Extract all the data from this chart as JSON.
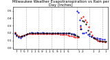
{
  "title": "Milwaukee Weather Evapotranspiration vs Rain per Day (Inches)",
  "background_color": "#ffffff",
  "xlim": [
    0,
    52
  ],
  "ylim": [
    -0.02,
    0.55
  ],
  "yticks": [
    0.0,
    0.1,
    0.2,
    0.3,
    0.4,
    0.5
  ],
  "grid_color": "#aaaaaa",
  "blue_x": [
    1,
    2,
    3,
    4,
    5,
    6,
    7,
    8,
    9,
    10,
    11,
    12,
    13,
    14,
    15,
    16,
    17,
    18,
    19,
    20,
    21,
    22,
    23,
    24,
    25,
    26,
    27,
    28,
    29,
    30,
    31,
    32,
    33,
    34,
    35,
    36,
    36.5,
    37,
    37.5,
    38,
    39,
    40,
    41,
    42,
    43,
    44,
    45,
    46,
    47,
    48,
    49,
    50
  ],
  "blue_y": [
    0.19,
    0.16,
    0.14,
    0.13,
    0.15,
    0.16,
    0.18,
    0.19,
    0.2,
    0.21,
    0.2,
    0.2,
    0.21,
    0.2,
    0.2,
    0.21,
    0.2,
    0.2,
    0.2,
    0.2,
    0.19,
    0.2,
    0.2,
    0.2,
    0.2,
    0.2,
    0.2,
    0.2,
    0.2,
    0.2,
    0.2,
    0.19,
    0.19,
    0.18,
    0.5,
    0.48,
    0.38,
    0.3,
    0.25,
    0.2,
    0.2,
    0.21,
    0.18,
    0.16,
    0.15,
    0.14,
    0.13,
    0.13,
    0.12,
    0.12,
    0.11,
    0.11
  ],
  "red_x": [
    1,
    2,
    3,
    4,
    5,
    6,
    7,
    8,
    9,
    10,
    11,
    12,
    13,
    14,
    15,
    16,
    17,
    18,
    19,
    20,
    21,
    22,
    23,
    24,
    25,
    26,
    27,
    28,
    29,
    30,
    31,
    32,
    33,
    34,
    35,
    36,
    36.8,
    37.5,
    38.5,
    39.5,
    40.5,
    41.5,
    42.5,
    43.5,
    44.5,
    45.5,
    46.5,
    47.5,
    48.5,
    49.5,
    50.5
  ],
  "red_y": [
    0.21,
    0.18,
    0.16,
    0.15,
    0.16,
    0.17,
    0.18,
    0.19,
    0.19,
    0.19,
    0.19,
    0.19,
    0.19,
    0.19,
    0.19,
    0.19,
    0.19,
    0.19,
    0.19,
    0.19,
    0.19,
    0.19,
    0.19,
    0.19,
    0.19,
    0.18,
    0.18,
    0.18,
    0.18,
    0.17,
    0.16,
    0.16,
    0.15,
    0.14,
    0.14,
    0.14,
    0.28,
    0.4,
    0.42,
    0.38,
    0.35,
    0.28,
    0.22,
    0.17,
    0.13,
    0.11,
    0.1,
    0.09,
    0.09,
    0.09,
    0.08
  ],
  "black_x": [
    1,
    2,
    3,
    4,
    5,
    6,
    7,
    8,
    9,
    10,
    11,
    12,
    13,
    14,
    15,
    16,
    17,
    18,
    19,
    20,
    21,
    22,
    23,
    24,
    25,
    26,
    27,
    28,
    29,
    30,
    31,
    32,
    33,
    34,
    35,
    36,
    37,
    38,
    39,
    40,
    41,
    42,
    43,
    44,
    45,
    46,
    47,
    48,
    49,
    50,
    51
  ],
  "black_y": [
    0.2,
    0.17,
    0.15,
    0.15,
    0.16,
    0.17,
    0.18,
    0.19,
    0.2,
    0.2,
    0.2,
    0.2,
    0.2,
    0.2,
    0.2,
    0.2,
    0.2,
    0.2,
    0.2,
    0.2,
    0.2,
    0.2,
    0.2,
    0.2,
    0.2,
    0.2,
    0.2,
    0.2,
    0.2,
    0.2,
    0.2,
    0.19,
    0.18,
    0.17,
    0.16,
    0.15,
    0.25,
    0.37,
    0.36,
    0.32,
    0.24,
    0.19,
    0.15,
    0.13,
    0.12,
    0.11,
    0.1,
    0.1,
    0.09,
    0.09,
    0.09
  ],
  "vline_positions": [
    7,
    14,
    21,
    28,
    35,
    42,
    49
  ],
  "xtick_labels": [
    "7",
    "7",
    "5",
    "7",
    "1",
    "1",
    "5",
    "9",
    "1",
    "1",
    "5",
    "9",
    "1",
    "1",
    "5",
    "1",
    "2",
    "1",
    "2",
    "1"
  ],
  "xtick_positions": [
    2,
    4,
    6,
    8,
    10,
    12,
    14,
    16,
    18,
    20,
    22,
    24,
    26,
    28,
    30,
    36,
    38,
    44,
    47,
    51
  ],
  "title_fontsize": 4,
  "dot_size": 1.2,
  "tick_fontsize": 3.0,
  "ytick_fontsize": 3.0
}
